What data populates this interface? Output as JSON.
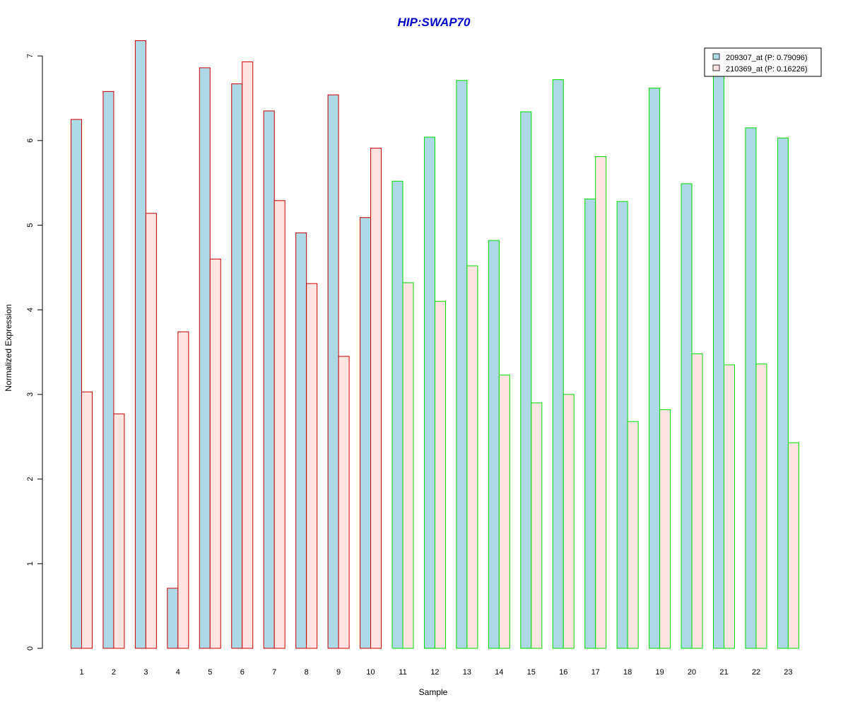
{
  "chart_data": {
    "type": "bar",
    "title": "HIP:SWAP70",
    "xlabel": "Sample",
    "ylabel": "Normalized Expression",
    "ylim": [
      0,
      7.3
    ],
    "yticks": [
      0,
      1,
      2,
      3,
      4,
      5,
      6,
      7
    ],
    "categories": [
      "1",
      "2",
      "3",
      "4",
      "5",
      "6",
      "7",
      "8",
      "9",
      "10",
      "11",
      "12",
      "13",
      "14",
      "15",
      "16",
      "17",
      "18",
      "19",
      "20",
      "21",
      "22",
      "23"
    ],
    "group_border_colors": [
      "#cc0000",
      "#cc0000",
      "#cc0000",
      "#cc0000",
      "#cc0000",
      "#cc0000",
      "#cc0000",
      "#cc0000",
      "#cc0000",
      "#cc0000",
      "#00dd00",
      "#00dd00",
      "#00dd00",
      "#00dd00",
      "#00dd00",
      "#00dd00",
      "#00dd00",
      "#00dd00",
      "#00dd00",
      "#00dd00",
      "#00dd00",
      "#00dd00",
      "#00dd00"
    ],
    "series": [
      {
        "name": "209307_at (P: 0.79096)",
        "fill": "#add8e6",
        "values": [
          6.25,
          6.58,
          7.18,
          0.71,
          6.86,
          6.67,
          6.35,
          4.91,
          6.54,
          5.09,
          5.52,
          6.04,
          6.71,
          4.82,
          6.34,
          6.72,
          5.31,
          5.28,
          6.62,
          5.49,
          6.8,
          6.15,
          6.03
        ]
      },
      {
        "name": "210369_at (P: 0.16226)",
        "fill": "#ffe4e1",
        "values": [
          3.03,
          2.77,
          5.14,
          3.74,
          4.6,
          6.93,
          5.29,
          4.31,
          3.45,
          5.91,
          4.32,
          4.1,
          4.52,
          3.23,
          2.9,
          3.0,
          5.81,
          2.68,
          2.82,
          3.48,
          3.35,
          3.36,
          2.43
        ]
      }
    ],
    "legend": "top-right",
    "grid": false
  }
}
